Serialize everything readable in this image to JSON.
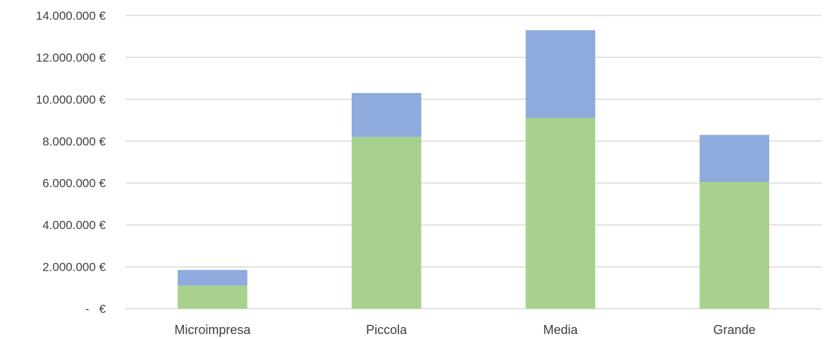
{
  "chart_data": {
    "type": "bar",
    "stacked": true,
    "categories": [
      "Microimpresa",
      "Piccola",
      "Media",
      "Grande"
    ],
    "series": [
      {
        "values": [
          1100000,
          8200000,
          9100000,
          6050000
        ],
        "color": "#a9d18e"
      },
      {
        "values": [
          750000,
          2100000,
          4200000,
          2250000
        ],
        "color": "#8faadc"
      }
    ],
    "yticks": [
      {
        "value": 0,
        "label": "-   €"
      },
      {
        "value": 2000000,
        "label": "2.000.000 €"
      },
      {
        "value": 4000000,
        "label": "4.000.000 €"
      },
      {
        "value": 6000000,
        "label": "6.000.000 €"
      },
      {
        "value": 8000000,
        "label": "8.000.000 €"
      },
      {
        "value": 10000000,
        "label": "10.000.000 €"
      },
      {
        "value": 12000000,
        "label": "12.000.000 €"
      },
      {
        "value": 14000000,
        "label": "14.000.000 €"
      }
    ],
    "ylim": [
      0,
      14000000
    ],
    "grid": true,
    "legend": "none"
  }
}
